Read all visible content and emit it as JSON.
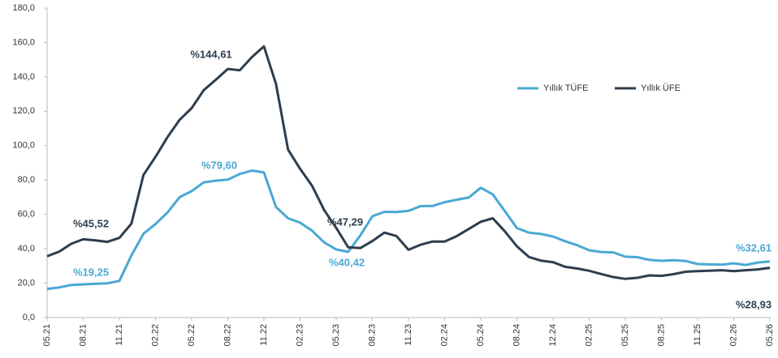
{
  "chart_data": {
    "type": "line",
    "categories": [
      "05.21",
      null,
      null,
      "08.21",
      null,
      null,
      "11.21",
      null,
      null,
      "02.22",
      null,
      null,
      "05.22",
      null,
      null,
      "08.22",
      null,
      null,
      "11.22",
      null,
      null,
      "02.23",
      null,
      null,
      "05.23",
      null,
      null,
      "08.23",
      null,
      null,
      "11.23",
      null,
      null,
      "02.24",
      null,
      null,
      "05.24",
      null,
      null,
      "08.24",
      null,
      null,
      "12.24",
      null,
      null,
      "02.25",
      null,
      null,
      "05.25",
      null,
      null,
      "08.25",
      null,
      null,
      "11.25",
      null,
      null,
      "02.26",
      null,
      null,
      "05.26"
    ],
    "series": [
      {
        "name": "Yıllık TÜFE",
        "color": "#4aa8d4",
        "values": [
          16.6,
          17.5,
          18.9,
          19.25,
          19.6,
          19.9,
          21.3,
          36.1,
          48.7,
          54.4,
          61.1,
          70.0,
          73.5,
          78.6,
          79.6,
          80.2,
          83.5,
          85.5,
          84.4,
          64.3,
          57.7,
          55.2,
          50.5,
          43.7,
          39.6,
          38.2,
          47.8,
          58.9,
          61.5,
          61.4,
          62.0,
          64.8,
          64.9,
          67.1,
          68.5,
          69.8,
          75.5,
          71.6,
          61.8,
          52.0,
          49.4,
          48.6,
          47.1,
          44.4,
          42.1,
          39.1,
          38.1,
          37.9,
          35.4,
          35.1,
          33.5,
          33.0,
          33.3,
          32.9,
          31.1,
          30.9,
          30.7,
          31.5,
          30.6,
          32.0,
          32.61
        ]
      },
      {
        "name": "Yıllık ÜFE",
        "color": "#2e3e4e",
        "values": [
          35.6,
          38.3,
          42.9,
          45.52,
          44.9,
          44.0,
          46.3,
          54.6,
          83.0,
          93.5,
          105.0,
          115.0,
          121.8,
          132.2,
          138.3,
          144.61,
          143.8,
          151.5,
          157.7,
          136.0,
          97.7,
          86.5,
          76.6,
          62.5,
          52.1,
          40.8,
          40.4,
          44.5,
          49.4,
          47.4,
          39.4,
          42.3,
          44.2,
          44.2,
          47.29,
          51.5,
          55.7,
          57.7,
          50.1,
          41.4,
          35.2,
          33.1,
          32.2,
          29.5,
          28.5,
          27.2,
          25.3,
          23.5,
          22.5,
          23.1,
          24.5,
          24.2,
          25.2,
          26.6,
          27.0,
          27.2,
          27.5,
          27.0,
          27.5,
          28.0,
          28.93
        ]
      }
    ],
    "ylim": [
      0,
      180
    ],
    "yticks": [
      {
        "value": 0,
        "label": "0,0"
      },
      {
        "value": 20,
        "label": "20,0"
      },
      {
        "value": 40,
        "label": "40,0"
      },
      {
        "value": 60,
        "label": "60,0"
      },
      {
        "value": 80,
        "label": "80,0"
      },
      {
        "value": 100,
        "label": "100,0"
      },
      {
        "value": 120,
        "label": "120,0"
      },
      {
        "value": 140,
        "label": "140,0"
      },
      {
        "value": 160,
        "label": "160,0"
      },
      {
        "value": 180,
        "label": "180,0"
      }
    ],
    "legend": "upper right",
    "annotations": [
      {
        "text": "%144,61",
        "color": "#2e3e4e"
      },
      {
        "text": "%45,52",
        "color": "#2e3e4e"
      },
      {
        "text": "%19,25",
        "color": "#4aa8d4"
      },
      {
        "text": "%79,60",
        "color": "#4aa8d4"
      },
      {
        "text": "%47,29",
        "color": "#2e3e4e"
      },
      {
        "text": "%40,42",
        "color": "#4aa8d4"
      },
      {
        "text": "%32,61",
        "color": "#4aa8d4"
      },
      {
        "text": "%28,93",
        "color": "#2e3e4e"
      }
    ]
  }
}
